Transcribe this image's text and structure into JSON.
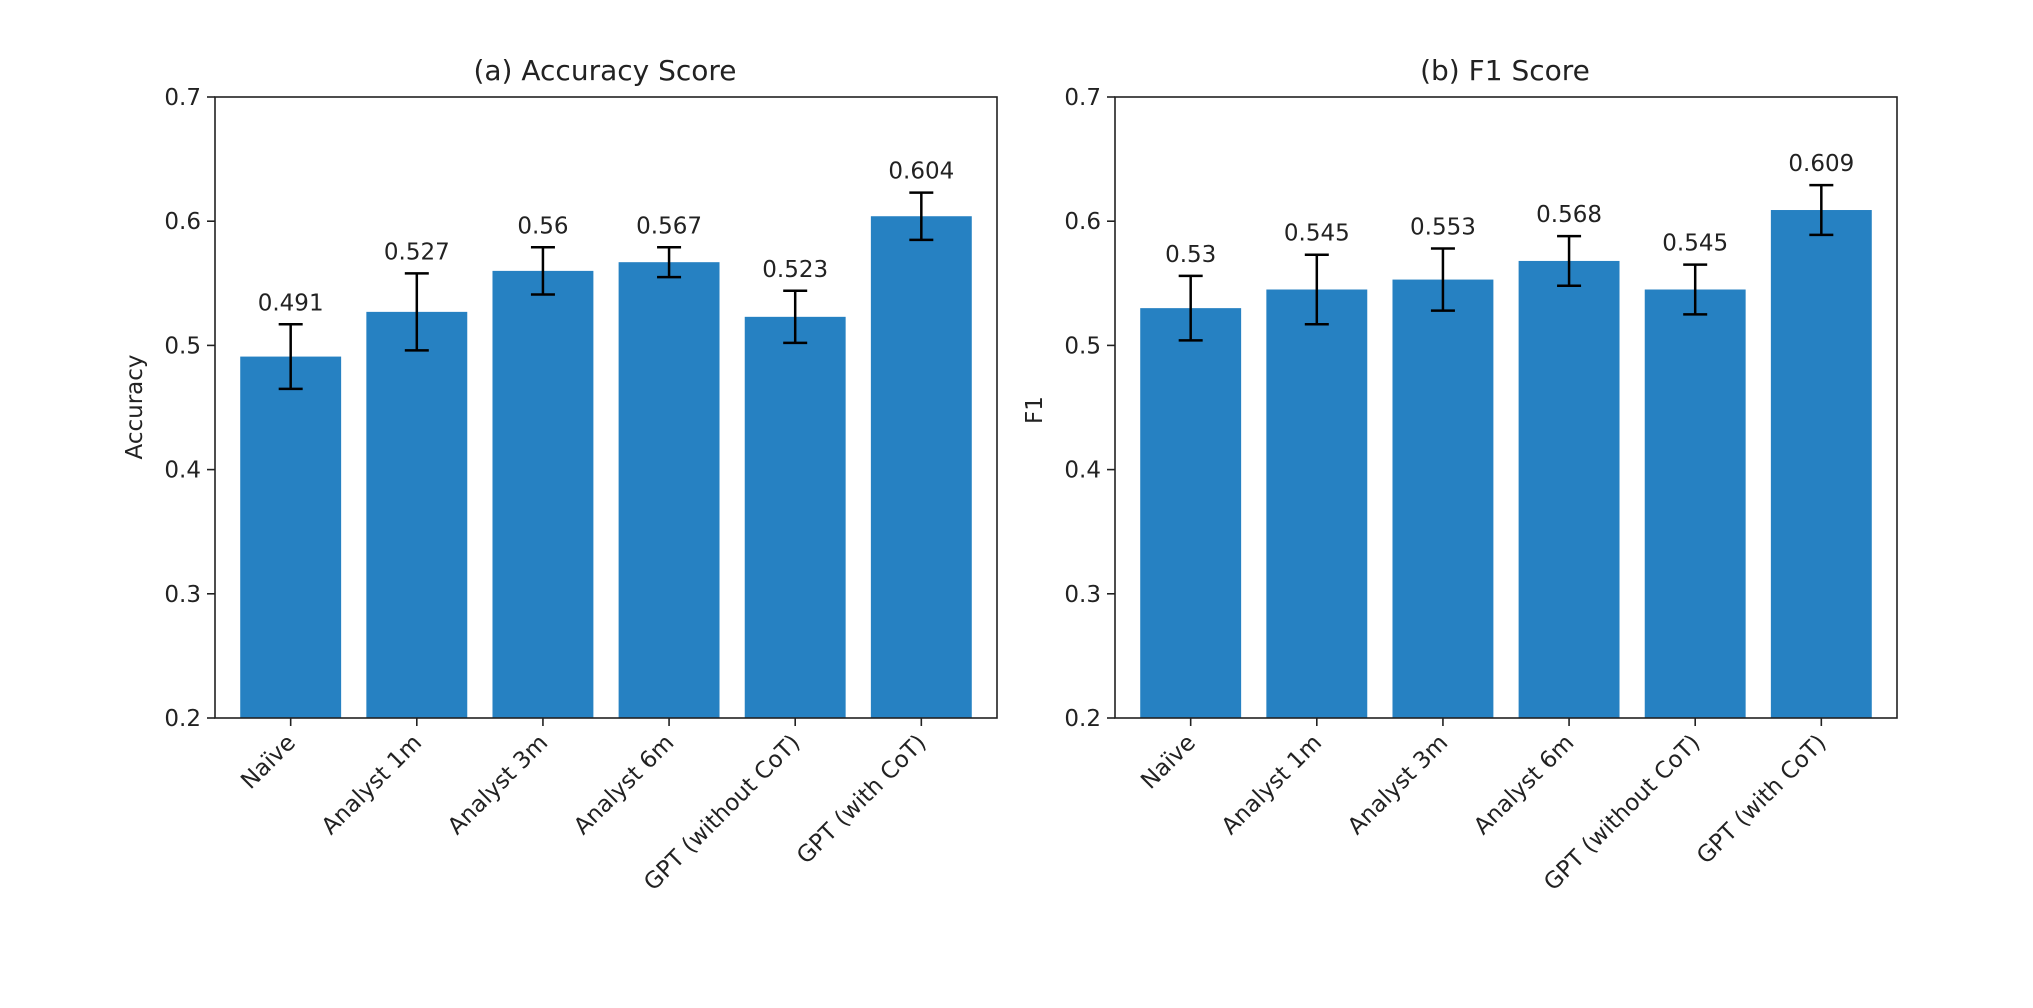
{
  "chart_data": [
    {
      "type": "bar",
      "title": "(a) Accuracy Score",
      "xlabel": "",
      "ylabel": "Accuracy",
      "ylim": [
        0.2,
        0.7
      ],
      "yticks": [
        "0.2",
        "0.3",
        "0.4",
        "0.5",
        "0.6",
        "0.7"
      ],
      "categories": [
        "Naïve",
        "Analyst 1m",
        "Analyst 3m",
        "Analyst 6m",
        "GPT (without CoT)",
        "GPT (with CoT)"
      ],
      "values": [
        0.491,
        0.527,
        0.56,
        0.567,
        0.523,
        0.604
      ],
      "value_labels": [
        "0.491",
        "0.527",
        "0.56",
        "0.567",
        "0.523",
        "0.604"
      ],
      "errors": [
        0.026,
        0.031,
        0.019,
        0.012,
        0.021,
        0.019
      ],
      "color": "#2681c2",
      "grid": false
    },
    {
      "type": "bar",
      "title": "(b) F1 Score",
      "xlabel": "",
      "ylabel": "F1",
      "ylim": [
        0.2,
        0.7
      ],
      "yticks": [
        "0.2",
        "0.3",
        "0.4",
        "0.5",
        "0.6",
        "0.7"
      ],
      "categories": [
        "Naïve",
        "Analyst 1m",
        "Analyst 3m",
        "Analyst 6m",
        "GPT (without CoT)",
        "GPT (with CoT)"
      ],
      "values": [
        0.53,
        0.545,
        0.553,
        0.568,
        0.545,
        0.609
      ],
      "value_labels": [
        "0.53",
        "0.545",
        "0.553",
        "0.568",
        "0.545",
        "0.609"
      ],
      "errors": [
        0.026,
        0.028,
        0.025,
        0.02,
        0.02,
        0.02
      ],
      "color": "#2681c2",
      "grid": false
    }
  ]
}
